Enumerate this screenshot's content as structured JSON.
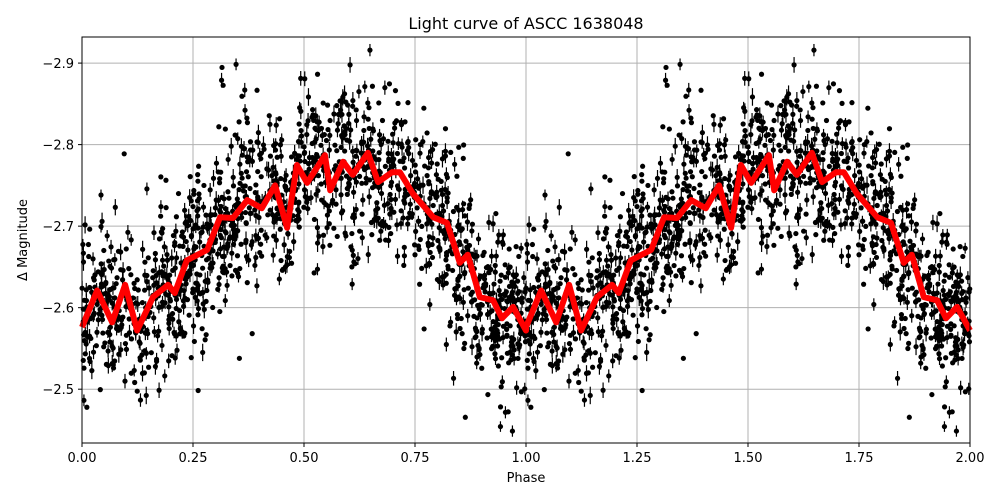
{
  "chart_data": {
    "type": "scatter",
    "title": "Light curve of ASCC 1638048",
    "xlabel": "Phase",
    "ylabel": "Δ Magnitude",
    "xlim": [
      0,
      2
    ],
    "ylim": [
      -2.434,
      -2.932
    ],
    "y_inverted": true,
    "grid": true,
    "x_ticks": [
      "0.00",
      "0.25",
      "0.50",
      "0.75",
      "1.00",
      "1.25",
      "1.50",
      "1.75",
      "2.00"
    ],
    "x_tick_values": [
      0,
      0.25,
      0.5,
      0.75,
      1.0,
      1.25,
      1.5,
      1.75,
      2.0
    ],
    "y_ticks": [
      "−2.9",
      "−2.8",
      "−2.7",
      "−2.6",
      "−2.5"
    ],
    "y_tick_values": [
      -2.9,
      -2.8,
      -2.7,
      -2.6,
      -2.5
    ],
    "series": [
      {
        "kind": "scatter-errorbar",
        "color": "#000000",
        "description_of_spread": "dense black points with error bars around the binned curve, repeated for phase 1–2"
      },
      {
        "kind": "line",
        "color": "#ff0000",
        "phase_period_repeat": true,
        "x": [
          0.0,
          0.034,
          0.068,
          0.097,
          0.124,
          0.16,
          0.194,
          0.209,
          0.236,
          0.282,
          0.311,
          0.34,
          0.372,
          0.405,
          0.435,
          0.462,
          0.484,
          0.507,
          0.547,
          0.559,
          0.588,
          0.61,
          0.644,
          0.667,
          0.698,
          0.716,
          0.745,
          0.791,
          0.822,
          0.851,
          0.869,
          0.896,
          0.926,
          0.946,
          0.971,
          1.0
        ],
        "y": [
          -2.576,
          -2.621,
          -2.582,
          -2.628,
          -2.572,
          -2.613,
          -2.628,
          -2.618,
          -2.658,
          -2.671,
          -2.711,
          -2.71,
          -2.732,
          -2.722,
          -2.75,
          -2.698,
          -2.775,
          -2.753,
          -2.787,
          -2.744,
          -2.779,
          -2.763,
          -2.79,
          -2.754,
          -2.766,
          -2.766,
          -2.74,
          -2.711,
          -2.704,
          -2.655,
          -2.665,
          -2.613,
          -2.609,
          -2.587,
          -2.601,
          -2.572
        ]
      }
    ]
  }
}
